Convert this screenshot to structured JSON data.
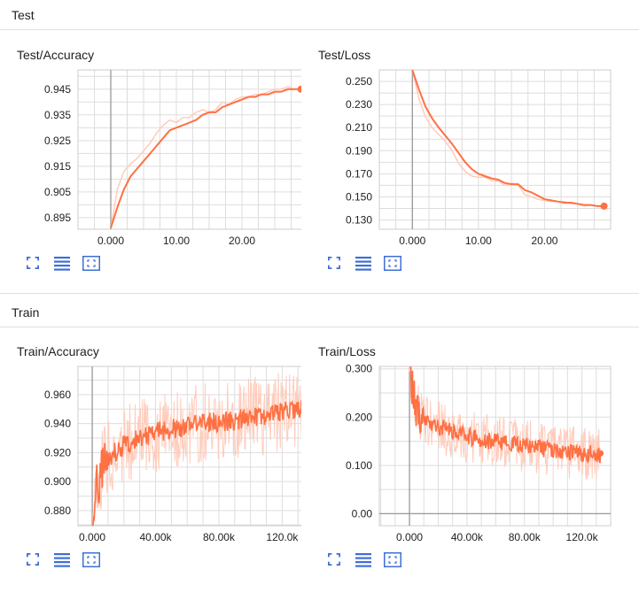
{
  "sections": [
    {
      "title": "Test"
    },
    {
      "title": "Train"
    }
  ],
  "colors": {
    "line": "#ff7043",
    "raw": "#ffccbc",
    "grid": "#dddddd",
    "axis": "#999999",
    "icon": "#3f6fd6"
  },
  "icons": [
    "fit-to-screen-icon",
    "toggle-log-scale-icon",
    "fit-domain-icon"
  ],
  "charts": [
    {
      "title": "Test/Accuracy"
    },
    {
      "title": "Test/Loss"
    },
    {
      "title": "Train/Accuracy"
    },
    {
      "title": "Train/Loss"
    }
  ],
  "chart_data": [
    {
      "type": "line",
      "title": "Test/Accuracy",
      "xlim": [
        -5,
        30
      ],
      "ylim": [
        0.8905,
        0.9525
      ],
      "xticks": [
        0,
        10,
        20
      ],
      "xtick_labels": [
        "0.000",
        "10.00",
        "20.00"
      ],
      "yticks": [
        0.895,
        0.905,
        0.915,
        0.925,
        0.935,
        0.945
      ],
      "ytick_labels": [
        "0.895",
        "0.905",
        "0.915",
        "0.925",
        "0.935",
        "0.945"
      ],
      "grid": true,
      "series": [
        {
          "x": [
            0,
            1,
            2,
            3,
            4,
            5,
            6,
            7,
            8,
            9,
            10,
            11,
            12,
            13,
            14,
            15,
            16,
            17,
            18,
            19,
            20,
            21,
            22,
            23,
            24,
            25,
            26,
            27,
            28,
            29
          ],
          "y": [
            0.891,
            0.899,
            0.906,
            0.911,
            0.914,
            0.917,
            0.92,
            0.923,
            0.926,
            0.929,
            0.93,
            0.931,
            0.932,
            0.933,
            0.935,
            0.936,
            0.936,
            0.938,
            0.939,
            0.94,
            0.941,
            0.942,
            0.942,
            0.943,
            0.943,
            0.944,
            0.944,
            0.945,
            0.945,
            0.945
          ]
        },
        {
          "x": [
            0,
            1,
            2,
            3,
            4,
            5,
            6,
            7,
            8,
            9,
            10,
            11,
            12,
            13,
            14,
            15,
            16,
            17,
            18,
            19,
            20,
            21,
            22,
            23,
            24,
            25,
            26,
            27,
            28,
            29
          ],
          "y": [
            0.891,
            0.906,
            0.913,
            0.916,
            0.918,
            0.921,
            0.924,
            0.928,
            0.931,
            0.933,
            0.932,
            0.934,
            0.934,
            0.936,
            0.937,
            0.936,
            0.937,
            0.94,
            0.939,
            0.941,
            0.942,
            0.942,
            0.943,
            0.943,
            0.944,
            0.945,
            0.945,
            0.946,
            0.945,
            0.945
          ]
        }
      ]
    },
    {
      "type": "line",
      "title": "Test/Loss",
      "xlim": [
        -5,
        30
      ],
      "ylim": [
        0.122,
        0.26
      ],
      "xticks": [
        0,
        10,
        20
      ],
      "xtick_labels": [
        "0.000",
        "10.00",
        "20.00"
      ],
      "yticks": [
        0.13,
        0.15,
        0.17,
        0.19,
        0.21,
        0.23,
        0.25
      ],
      "ytick_labels": [
        "0.130",
        "0.150",
        "0.170",
        "0.190",
        "0.210",
        "0.230",
        "0.250"
      ],
      "grid": true,
      "series": [
        {
          "x": [
            0,
            1,
            2,
            3,
            4,
            5,
            6,
            7,
            8,
            9,
            10,
            11,
            12,
            13,
            14,
            15,
            16,
            17,
            18,
            19,
            20,
            21,
            22,
            23,
            24,
            25,
            26,
            27,
            28,
            29
          ],
          "y": [
            0.26,
            0.243,
            0.228,
            0.218,
            0.21,
            0.203,
            0.196,
            0.188,
            0.18,
            0.174,
            0.17,
            0.168,
            0.166,
            0.165,
            0.162,
            0.161,
            0.161,
            0.156,
            0.154,
            0.151,
            0.148,
            0.147,
            0.146,
            0.145,
            0.145,
            0.144,
            0.143,
            0.143,
            0.142,
            0.142
          ]
        },
        {
          "x": [
            0,
            1,
            2,
            3,
            4,
            5,
            6,
            7,
            8,
            9,
            10,
            11,
            12,
            13,
            14,
            15,
            16,
            17,
            18,
            19,
            20,
            21,
            22,
            23,
            24,
            25,
            26,
            27,
            28,
            29
          ],
          "y": [
            0.26,
            0.235,
            0.219,
            0.21,
            0.204,
            0.198,
            0.19,
            0.179,
            0.172,
            0.168,
            0.167,
            0.167,
            0.164,
            0.164,
            0.16,
            0.162,
            0.16,
            0.152,
            0.15,
            0.148,
            0.147,
            0.146,
            0.146,
            0.146,
            0.144,
            0.144,
            0.142,
            0.143,
            0.142,
            0.142
          ]
        }
      ]
    },
    {
      "type": "line",
      "title": "Train/Accuracy",
      "xlim": [
        -9000,
        136000
      ],
      "ylim": [
        0.8695,
        0.9795
      ],
      "xticks": [
        0,
        40000,
        80000,
        120000
      ],
      "xtick_labels": [
        "0.000",
        "40.00k",
        "80.00k",
        "120.0k"
      ],
      "yticks": [
        0.88,
        0.9,
        0.92,
        0.94,
        0.96
      ],
      "ytick_labels": [
        "0.880",
        "0.900",
        "0.920",
        "0.940",
        "0.960"
      ],
      "grid": true,
      "trend_x": [
        0,
        3000,
        5000,
        8000,
        12000,
        20000,
        30000,
        40000,
        55000,
        70000,
        85000,
        100000,
        115000,
        125000,
        133000
      ],
      "trend_y": [
        0.872,
        0.895,
        0.905,
        0.913,
        0.918,
        0.925,
        0.93,
        0.934,
        0.937,
        0.94,
        0.942,
        0.944,
        0.947,
        0.949,
        0.95
      ],
      "noise_smoothed": 0.007,
      "noise_raw": 0.028,
      "points": 320,
      "last_value": 0.949
    },
    {
      "type": "line",
      "title": "Train/Loss",
      "xlim": [
        -21000,
        140000
      ],
      "ylim": [
        -0.025,
        0.305
      ],
      "xticks": [
        0,
        40000,
        80000,
        120000
      ],
      "xtick_labels": [
        "0.000",
        "40.00k",
        "80.00k",
        "120.0k"
      ],
      "yticks": [
        0.0,
        0.1,
        0.2,
        0.3
      ],
      "ytick_labels": [
        "0.00",
        "0.100",
        "0.200",
        "0.300"
      ],
      "grid": true,
      "trend_x": [
        0,
        2000,
        4000,
        8000,
        15000,
        25000,
        40000,
        60000,
        80000,
        100000,
        120000,
        133000
      ],
      "trend_y": [
        0.31,
        0.26,
        0.225,
        0.205,
        0.19,
        0.175,
        0.16,
        0.148,
        0.14,
        0.132,
        0.125,
        0.122
      ],
      "noise_smoothed": 0.018,
      "noise_raw": 0.055,
      "points": 320,
      "last_value": 0.125
    }
  ]
}
